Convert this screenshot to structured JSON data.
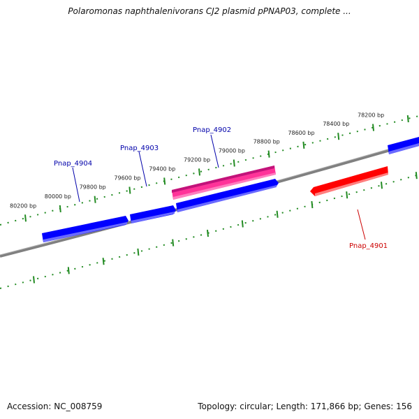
{
  "title": "Polaromonas naphthalenivorans CJ2 plasmid pPNAP03, complete ...",
  "footer": {
    "accession": "Accession: NC_008759",
    "summary": "Topology: circular; Length: 171,866 bp; Genes: 156"
  },
  "ruler": {
    "labels": [
      "80200 bp",
      "80000 bp",
      "79800 bp",
      "79600 bp",
      "79400 bp",
      "79200 bp",
      "79000 bp",
      "78800 bp",
      "78600 bp",
      "78400 bp",
      "78200 bp"
    ]
  },
  "genes": [
    {
      "label": "Pnap_4904",
      "color": "#0000ff"
    },
    {
      "label": "Pnap_4903",
      "color": "#0000ff"
    },
    {
      "label": "Pnap_4902",
      "color": "#ff3399"
    },
    {
      "label": "Pnap_4901",
      "color": "#ff0000"
    }
  ],
  "colors": {
    "backbone": "#808080",
    "ruler": "#228b22",
    "forward_gene": "#0000ff",
    "highlight_gene": "#ff3399",
    "reverse_gene": "#ff0000"
  }
}
